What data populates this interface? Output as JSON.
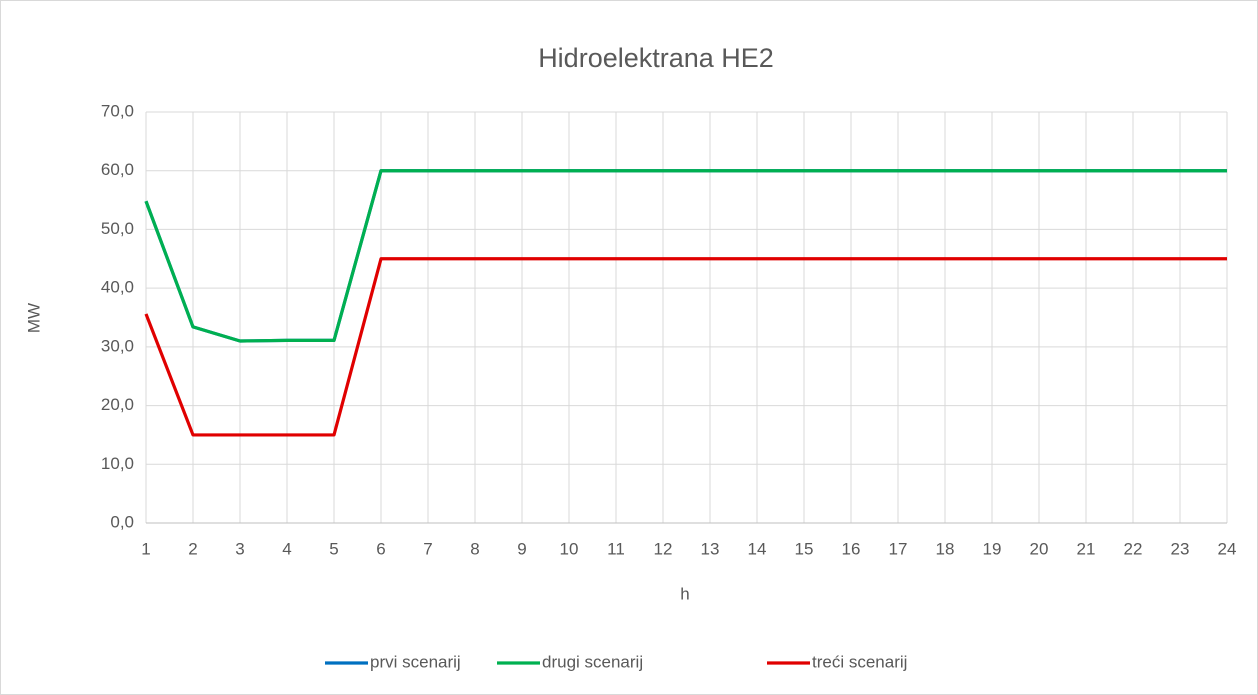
{
  "chart_data": {
    "type": "line",
    "title": "Hidroelektrana HE2",
    "xlabel": "h",
    "ylabel": "MW",
    "categories": [
      "1",
      "2",
      "3",
      "4",
      "5",
      "6",
      "7",
      "8",
      "9",
      "10",
      "11",
      "12",
      "13",
      "14",
      "15",
      "16",
      "17",
      "18",
      "19",
      "20",
      "21",
      "22",
      "23",
      "24"
    ],
    "series": [
      {
        "name": "prvi scenarij",
        "color": "#0070c0",
        "values": [
          54.8,
          33.4,
          31.0,
          31.1,
          31.1,
          60,
          60,
          60,
          60,
          60,
          60,
          60,
          60,
          60,
          60,
          60,
          60,
          60,
          60,
          60,
          60,
          60,
          60,
          60
        ]
      },
      {
        "name": "drugi scenarij",
        "color": "#00b050",
        "values": [
          54.8,
          33.4,
          31.0,
          31.1,
          31.1,
          60,
          60,
          60,
          60,
          60,
          60,
          60,
          60,
          60,
          60,
          60,
          60,
          60,
          60,
          60,
          60,
          60,
          60,
          60
        ]
      },
      {
        "name": "treći scenarij",
        "color": "#e00000",
        "values": [
          35.6,
          15,
          15,
          15,
          15,
          45,
          45,
          45,
          45,
          45,
          45,
          45,
          45,
          45,
          45,
          45,
          45,
          45,
          45,
          45,
          45,
          45,
          45,
          45
        ]
      }
    ],
    "ylim": [
      0,
      70
    ],
    "yticks": [
      {
        "value": 0,
        "label": "0,0"
      },
      {
        "value": 10,
        "label": "10,0"
      },
      {
        "value": 20,
        "label": "20,0"
      },
      {
        "value": 30,
        "label": "30,0"
      },
      {
        "value": 40,
        "label": "40,0"
      },
      {
        "value": 50,
        "label": "50,0"
      },
      {
        "value": 60,
        "label": "60,0"
      },
      {
        "value": 70,
        "label": "70,0"
      }
    ],
    "grid": true,
    "legend": "bottom"
  }
}
